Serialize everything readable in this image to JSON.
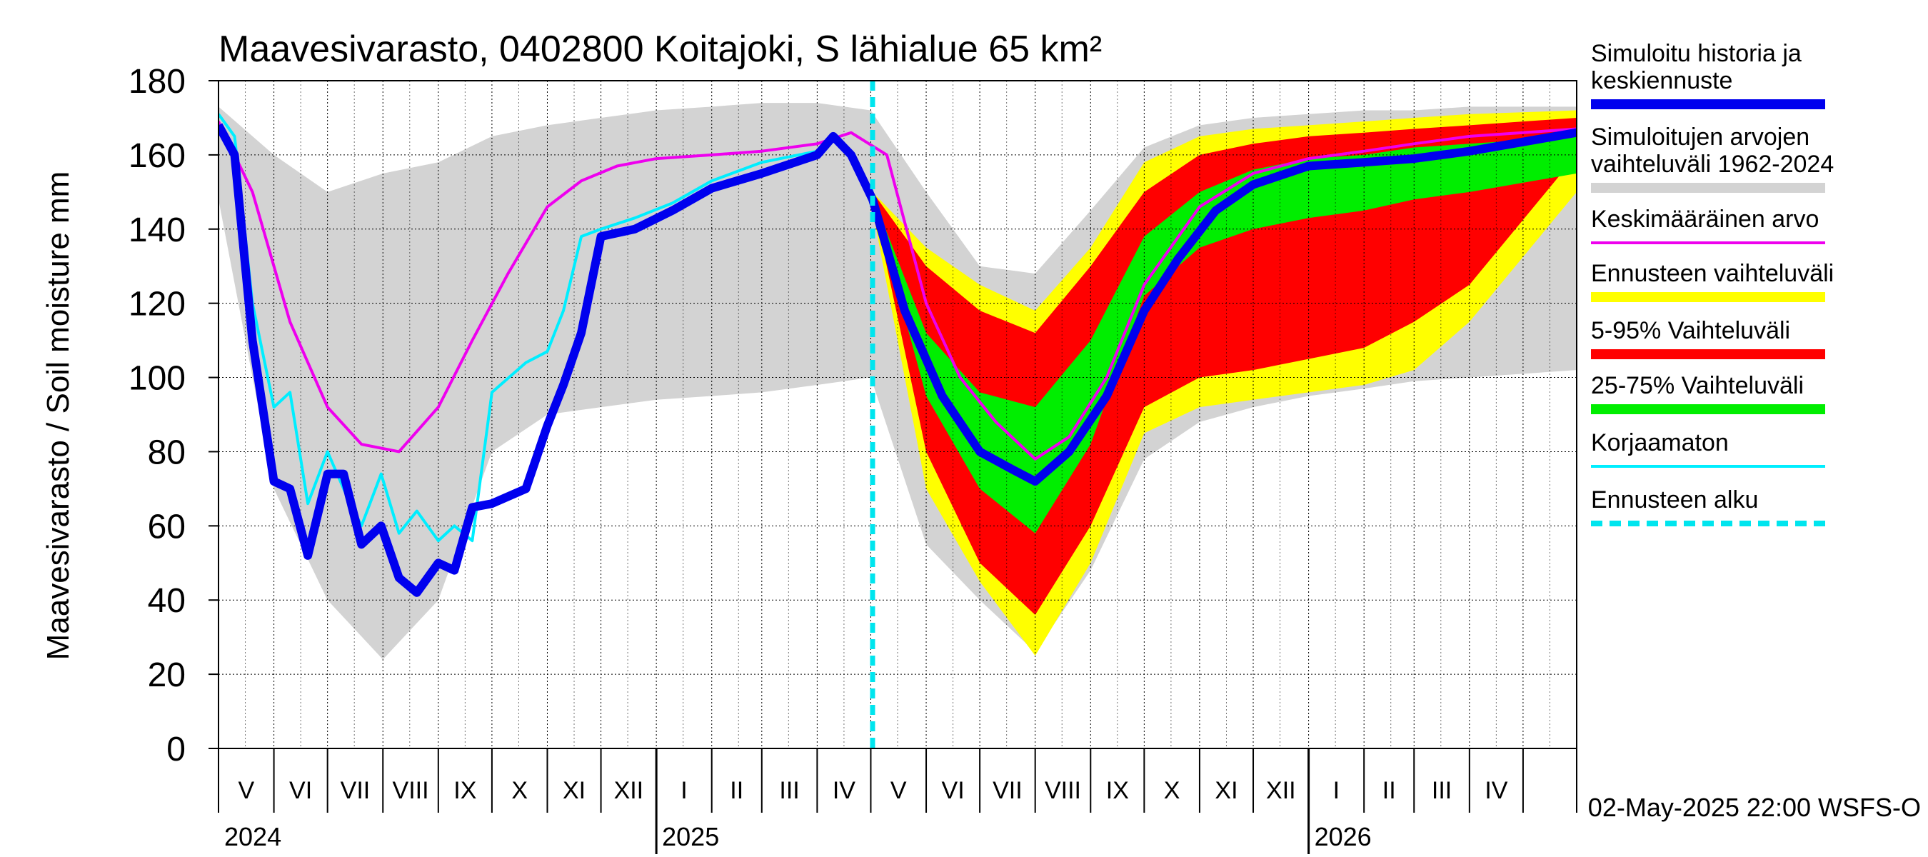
{
  "chart_data": {
    "type": "area",
    "title": "Maavesivarasto, 0402800 Koitajoki, S lähialue 65 km²",
    "ylabel": "Maavesivarasto / Soil moisture   mm",
    "ylim": [
      0,
      180
    ],
    "yticks": [
      0,
      20,
      40,
      60,
      80,
      100,
      120,
      140,
      160,
      180
    ],
    "grid": true,
    "legend_position": "right",
    "xlim": [
      "2024-05-01",
      "2026-05-31"
    ],
    "forecast_start": "2025-05-02",
    "month_labels": [
      "V",
      "VI",
      "VII",
      "VIII",
      "IX",
      "X",
      "XI",
      "XII",
      "I",
      "II",
      "III",
      "IV",
      "V",
      "VI",
      "VII",
      "VIII",
      "IX",
      "X",
      "XI",
      "XII",
      "I",
      "II",
      "III",
      "IV"
    ],
    "year_labels": [
      {
        "label": "2024",
        "date": "2024-05-01"
      },
      {
        "label": "2025",
        "date": "2025-01-01"
      },
      {
        "label": "2026",
        "date": "2026-01-01"
      }
    ],
    "footer": "02-May-2025 22:00 WSFS-O",
    "colors": {
      "history": "#0000ee",
      "range": "#d3d3d3",
      "mean": "#ee00ee",
      "forecast_range": "#ffff00",
      "p5_95": "#ff0000",
      "p25_75": "#00ee00",
      "uncorrected": "#00eeff",
      "forecast_start": "#00e5ee"
    },
    "legend": [
      {
        "key": "history",
        "label": "Simuloitu historia ja keskiennuste",
        "lines": [
          "Simuloitu historia ja",
          "keskiennuste"
        ],
        "style": "thick"
      },
      {
        "key": "range",
        "label": "Simuloitujen arvojen vaihteluväli 1962-2024",
        "lines": [
          "Simuloitujen arvojen",
          "vaihteluväli 1962-2024"
        ],
        "style": "thick"
      },
      {
        "key": "mean",
        "label": "Keskimääräinen arvo",
        "lines": [
          "Keskimääräinen arvo"
        ],
        "style": "thin"
      },
      {
        "key": "forecast_range",
        "label": "Ennusteen vaihteluväli",
        "lines": [
          "Ennusteen vaihteluväli"
        ],
        "style": "thick"
      },
      {
        "key": "p5_95",
        "label": "5-95% Vaihteluväli",
        "lines": [
          "5-95% Vaihteluväli"
        ],
        "style": "thick"
      },
      {
        "key": "p25_75",
        "label": "25-75% Vaihteluväli",
        "lines": [
          "25-75% Vaihteluväli"
        ],
        "style": "thick"
      },
      {
        "key": "uncorrected",
        "label": "Korjaamaton",
        "lines": [
          "Korjaamaton"
        ],
        "style": "thin"
      },
      {
        "key": "forecast_start",
        "label": "Ennusteen alku",
        "lines": [
          "Ennusteen alku"
        ],
        "style": "dashed"
      }
    ],
    "series": {
      "range_upper": {
        "x": [
          "2024-05-01",
          "2024-06-01",
          "2024-07-01",
          "2024-08-01",
          "2024-09-01",
          "2024-10-01",
          "2024-11-01",
          "2024-12-01",
          "2025-01-01",
          "2025-02-01",
          "2025-03-01",
          "2025-04-01",
          "2025-05-01",
          "2025-06-01",
          "2025-07-01",
          "2025-08-01",
          "2025-09-01",
          "2025-10-01",
          "2025-11-01",
          "2025-12-01",
          "2026-01-01",
          "2026-02-01",
          "2026-03-01",
          "2026-04-01",
          "2026-05-31"
        ],
        "y": [
          173,
          160,
          150,
          155,
          158,
          165,
          168,
          170,
          172,
          173,
          174,
          174,
          172,
          150,
          130,
          128,
          145,
          162,
          168,
          170,
          171,
          172,
          172,
          173,
          173
        ]
      },
      "range_lower": {
        "x": [
          "2024-05-01",
          "2024-06-01",
          "2024-07-01",
          "2024-08-01",
          "2024-09-01",
          "2024-10-01",
          "2024-11-01",
          "2024-12-01",
          "2025-01-01",
          "2025-02-01",
          "2025-03-01",
          "2025-04-01",
          "2025-05-01",
          "2025-06-01",
          "2025-07-01",
          "2025-08-01",
          "2025-09-01",
          "2025-10-01",
          "2025-11-01",
          "2025-12-01",
          "2026-01-01",
          "2026-02-01",
          "2026-03-01",
          "2026-04-01",
          "2026-05-31"
        ],
        "y": [
          148,
          70,
          40,
          24,
          40,
          80,
          90,
          92,
          94,
          95,
          96,
          98,
          100,
          55,
          40,
          26,
          48,
          78,
          88,
          92,
          95,
          97,
          99,
          100,
          102
        ]
      },
      "forecast_range_upper": {
        "x": [
          "2025-05-02",
          "2025-06-01",
          "2025-07-01",
          "2025-08-01",
          "2025-09-01",
          "2025-10-01",
          "2025-11-01",
          "2025-12-01",
          "2026-01-01",
          "2026-02-01",
          "2026-03-01",
          "2026-04-01",
          "2026-05-31"
        ],
        "y": [
          150,
          135,
          125,
          118,
          135,
          158,
          165,
          167,
          168,
          169,
          170,
          171,
          172
        ]
      },
      "forecast_range_lower": {
        "x": [
          "2025-05-02",
          "2025-06-01",
          "2025-07-01",
          "2025-08-01",
          "2025-09-01",
          "2025-10-01",
          "2025-11-01",
          "2025-12-01",
          "2026-01-01",
          "2026-02-01",
          "2026-03-01",
          "2026-04-01",
          "2026-05-31"
        ],
        "y": [
          145,
          70,
          45,
          25,
          50,
          85,
          92,
          94,
          96,
          98,
          102,
          115,
          150
        ]
      },
      "p5_95_upper": {
        "x": [
          "2025-05-02",
          "2025-06-01",
          "2025-07-01",
          "2025-08-01",
          "2025-09-01",
          "2025-10-01",
          "2025-11-01",
          "2025-12-01",
          "2026-01-01",
          "2026-02-01",
          "2026-03-01",
          "2026-04-01",
          "2026-05-31"
        ],
        "y": [
          150,
          130,
          118,
          112,
          130,
          150,
          160,
          163,
          165,
          166,
          167,
          168,
          170
        ]
      },
      "p5_95_lower": {
        "x": [
          "2025-05-02",
          "2025-06-01",
          "2025-07-01",
          "2025-08-01",
          "2025-09-01",
          "2025-10-01",
          "2025-11-01",
          "2025-12-01",
          "2026-01-01",
          "2026-02-01",
          "2026-03-01",
          "2026-04-01",
          "2026-05-31"
        ],
        "y": [
          148,
          80,
          50,
          36,
          60,
          92,
          100,
          102,
          105,
          108,
          115,
          125,
          160
        ]
      },
      "p25_75_upper": {
        "x": [
          "2025-05-02",
          "2025-06-01",
          "2025-07-01",
          "2025-08-01",
          "2025-09-01",
          "2025-10-01",
          "2025-11-01",
          "2025-12-01",
          "2026-01-01",
          "2026-02-01",
          "2026-03-01",
          "2026-04-01",
          "2026-05-31"
        ],
        "y": [
          149,
          112,
          96,
          92,
          110,
          138,
          150,
          156,
          159,
          160,
          162,
          163,
          165
        ]
      },
      "p25_75_lower": {
        "x": [
          "2025-05-02",
          "2025-06-01",
          "2025-07-01",
          "2025-08-01",
          "2025-09-01",
          "2025-10-01",
          "2025-11-01",
          "2025-12-01",
          "2026-01-01",
          "2026-02-01",
          "2026-03-01",
          "2026-04-01",
          "2026-05-31"
        ],
        "y": [
          148,
          95,
          70,
          58,
          82,
          122,
          135,
          140,
          143,
          145,
          148,
          150,
          155
        ]
      },
      "mean": {
        "x": [
          "2024-05-01",
          "2024-05-20",
          "2024-06-10",
          "2024-07-01",
          "2024-07-20",
          "2024-08-10",
          "2024-09-01",
          "2024-09-20",
          "2024-10-10",
          "2024-11-01",
          "2024-11-20",
          "2024-12-10",
          "2025-01-01",
          "2025-02-01",
          "2025-03-01",
          "2025-04-01",
          "2025-04-20",
          "2025-05-10",
          "2025-06-01",
          "2025-06-20",
          "2025-07-10",
          "2025-08-01",
          "2025-08-20",
          "2025-09-10",
          "2025-10-01",
          "2025-11-01",
          "2025-12-01",
          "2026-01-01",
          "2026-02-01",
          "2026-03-01",
          "2026-04-01",
          "2026-05-31"
        ],
        "y": [
          169,
          150,
          115,
          92,
          82,
          80,
          92,
          110,
          128,
          146,
          153,
          157,
          159,
          160,
          161,
          163,
          166,
          160,
          120,
          100,
          88,
          78,
          84,
          100,
          125,
          146,
          155,
          159,
          161,
          163,
          165,
          167
        ]
      },
      "uncorrected": {
        "x": [
          "2024-05-01",
          "2024-05-10",
          "2024-05-20",
          "2024-06-01",
          "2024-06-10",
          "2024-06-20",
          "2024-07-01",
          "2024-07-10",
          "2024-07-20",
          "2024-07-31",
          "2024-08-10",
          "2024-08-20",
          "2024-09-01",
          "2024-09-10",
          "2024-09-20",
          "2024-10-01",
          "2024-10-20",
          "2024-11-01",
          "2024-11-10",
          "2024-11-20",
          "2024-12-01",
          "2024-12-20",
          "2025-01-10",
          "2025-02-01",
          "2025-03-01",
          "2025-04-01",
          "2025-04-10",
          "2025-04-20",
          "2025-05-02"
        ],
        "y": [
          171,
          165,
          120,
          92,
          96,
          66,
          80,
          70,
          60,
          74,
          58,
          64,
          56,
          60,
          56,
          96,
          104,
          107,
          118,
          138,
          140,
          143,
          147,
          153,
          158,
          161,
          165,
          160,
          150
        ]
      },
      "history": {
        "x": [
          "2024-05-01",
          "2024-05-10",
          "2024-05-20",
          "2024-06-01",
          "2024-06-10",
          "2024-06-20",
          "2024-07-01",
          "2024-07-10",
          "2024-07-20",
          "2024-07-31",
          "2024-08-10",
          "2024-08-20",
          "2024-09-01",
          "2024-09-10",
          "2024-09-20",
          "2024-10-01",
          "2024-10-20",
          "2024-11-01",
          "2024-11-10",
          "2024-11-20",
          "2024-12-01",
          "2024-12-20",
          "2025-01-10",
          "2025-02-01",
          "2025-03-01",
          "2025-04-01",
          "2025-04-10",
          "2025-04-20",
          "2025-05-02",
          "2025-05-20",
          "2025-06-10",
          "2025-07-01",
          "2025-07-20",
          "2025-08-01",
          "2025-08-20",
          "2025-09-10",
          "2025-10-01",
          "2025-10-20",
          "2025-11-10",
          "2025-12-01",
          "2026-01-01",
          "2026-02-01",
          "2026-03-01",
          "2026-04-01",
          "2026-05-31"
        ],
        "y": [
          168,
          160,
          110,
          72,
          70,
          52,
          74,
          74,
          55,
          60,
          46,
          42,
          50,
          48,
          65,
          66,
          70,
          87,
          98,
          112,
          138,
          140,
          145,
          151,
          155,
          160,
          165,
          160,
          148,
          118,
          95,
          80,
          75,
          72,
          80,
          95,
          118,
          132,
          145,
          152,
          157,
          158,
          159,
          161,
          166
        ]
      }
    }
  }
}
